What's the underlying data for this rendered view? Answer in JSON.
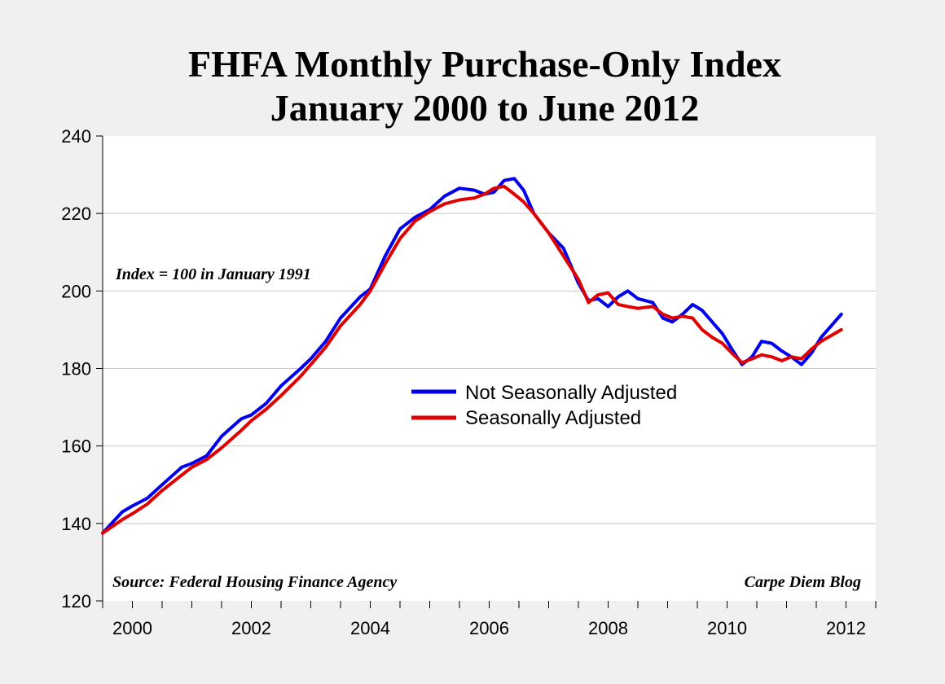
{
  "colors": {
    "background": "#f0f0f0",
    "plot_bg": "#ffffff",
    "nsa": "#0000ee",
    "sa": "#e00000",
    "grid": "#c8c8c8"
  },
  "chart_data": {
    "type": "line",
    "title": "FHFA Monthly Purchase-Only Index",
    "subtitle": "January 2000 to June 2012",
    "xlabel": "",
    "ylabel": "",
    "xlim": [
      2000,
      2013
    ],
    "ylim": [
      120,
      240
    ],
    "y_ticks": [
      120,
      140,
      160,
      180,
      200,
      220,
      240
    ],
    "x_tick_labels": [
      {
        "label": "2000",
        "value": 2000
      },
      {
        "label": "2002",
        "value": 2002
      },
      {
        "label": "2004",
        "value": 2004
      },
      {
        "label": "2006",
        "value": 2006
      },
      {
        "label": "2008",
        "value": 2008
      },
      {
        "label": "2010",
        "value": 2010
      },
      {
        "label": "2012",
        "value": 2012
      }
    ],
    "grid": true,
    "legend_position": "center",
    "annotations": {
      "index_note": "Index = 100 in January 1991",
      "source": "Source: Federal Housing Finance Agency",
      "credit": "Carpe Diem Blog"
    },
    "series": [
      {
        "name": "Not Seasonally Adjusted",
        "color": "#0000ee",
        "x": [
          2000.0,
          2000.33,
          2000.5,
          2000.75,
          2001.0,
          2001.33,
          2001.5,
          2001.75,
          2002.0,
          2002.33,
          2002.5,
          2002.75,
          2003.0,
          2003.33,
          2003.5,
          2003.75,
          2004.0,
          2004.33,
          2004.5,
          2004.75,
          2005.0,
          2005.25,
          2005.5,
          2005.75,
          2006.0,
          2006.25,
          2006.42,
          2006.58,
          2006.75,
          2006.92,
          2007.08,
          2007.25,
          2007.5,
          2007.75,
          2008.0,
          2008.17,
          2008.33,
          2008.5,
          2008.67,
          2008.83,
          2009.0,
          2009.25,
          2009.42,
          2009.58,
          2009.75,
          2009.92,
          2010.08,
          2010.25,
          2010.42,
          2010.58,
          2010.75,
          2010.92,
          2011.08,
          2011.25,
          2011.42,
          2011.58,
          2011.75,
          2011.92,
          2012.08,
          2012.25,
          2012.42
        ],
        "values": [
          137.5,
          143,
          144.5,
          146.5,
          150,
          154.5,
          155.5,
          157.5,
          162.5,
          167,
          168,
          171,
          175.5,
          180,
          182.5,
          187,
          193,
          198.5,
          200.5,
          209,
          216,
          219,
          221,
          224.5,
          226.5,
          226,
          225,
          225.5,
          228.5,
          229,
          226,
          220,
          215,
          211,
          202,
          197.5,
          198,
          196,
          198.5,
          200,
          198,
          197,
          193,
          192,
          194,
          196.5,
          195,
          192,
          189,
          185,
          181,
          183,
          187,
          186.5,
          184.5,
          183,
          181,
          184,
          188,
          191,
          194
        ]
      },
      {
        "name": "Seasonally Adjusted",
        "color": "#e00000",
        "x": [
          2000.0,
          2000.33,
          2000.5,
          2000.75,
          2001.0,
          2001.33,
          2001.5,
          2001.75,
          2002.0,
          2002.33,
          2002.5,
          2002.75,
          2003.0,
          2003.33,
          2003.5,
          2003.75,
          2004.0,
          2004.33,
          2004.5,
          2004.75,
          2005.0,
          2005.25,
          2005.5,
          2005.75,
          2006.0,
          2006.25,
          2006.42,
          2006.58,
          2006.75,
          2006.92,
          2007.08,
          2007.25,
          2007.5,
          2007.75,
          2008.0,
          2008.17,
          2008.33,
          2008.5,
          2008.67,
          2008.83,
          2009.0,
          2009.25,
          2009.42,
          2009.58,
          2009.75,
          2009.92,
          2010.08,
          2010.25,
          2010.42,
          2010.58,
          2010.75,
          2010.92,
          2011.08,
          2011.25,
          2011.42,
          2011.58,
          2011.75,
          2011.92,
          2012.08,
          2012.25,
          2012.42
        ],
        "values": [
          137.5,
          141,
          142.5,
          145,
          148.5,
          152.5,
          154.5,
          156.5,
          159.5,
          164,
          166.5,
          169.5,
          173,
          178,
          181,
          185.5,
          191,
          196.5,
          200,
          207,
          213.5,
          218,
          220.5,
          222.5,
          223.5,
          224,
          225,
          226.5,
          227,
          225,
          223,
          220,
          215,
          209,
          203,
          197,
          199,
          199.5,
          196.5,
          196,
          195.5,
          196,
          194,
          193,
          193.5,
          193,
          190,
          188,
          186.5,
          184,
          181.5,
          182.5,
          183.5,
          183,
          182,
          183,
          182.5,
          185,
          187,
          188.5,
          190
        ]
      }
    ]
  }
}
